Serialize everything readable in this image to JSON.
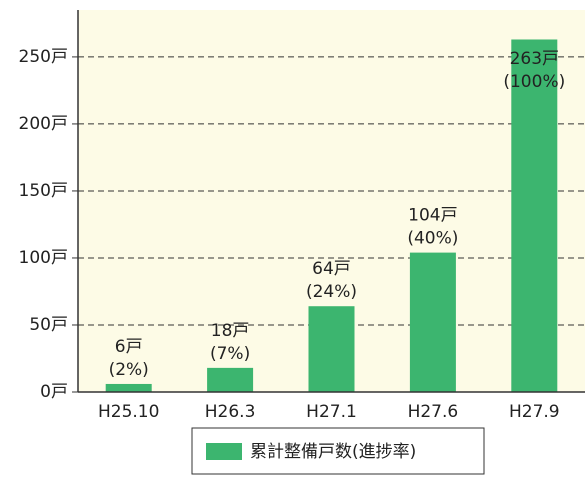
{
  "chart_data": {
    "type": "bar",
    "categories": [
      "H25.10",
      "H26.3",
      "H27.1",
      "H27.6",
      "H27.9"
    ],
    "values": [
      6,
      18,
      64,
      104,
      263
    ],
    "value_labels": [
      "6戸",
      "18戸",
      "64戸",
      "104戸",
      "263戸"
    ],
    "share_labels": [
      "(2%)",
      "(7%)",
      "(24%)",
      "(40%)",
      "(100%)"
    ],
    "color": "#3cb56f",
    "legend": "累計整備戸数(進捗率)",
    "ylim": [
      0,
      285
    ],
    "yticks": [
      {
        "value": 0,
        "label": "0戸"
      },
      {
        "value": 50,
        "label": "50戸"
      },
      {
        "value": 100,
        "label": "100戸"
      },
      {
        "value": 150,
        "label": "150戸"
      },
      {
        "value": 200,
        "label": "200戸"
      },
      {
        "value": 250,
        "label": "250戸"
      }
    ],
    "grid": true
  }
}
